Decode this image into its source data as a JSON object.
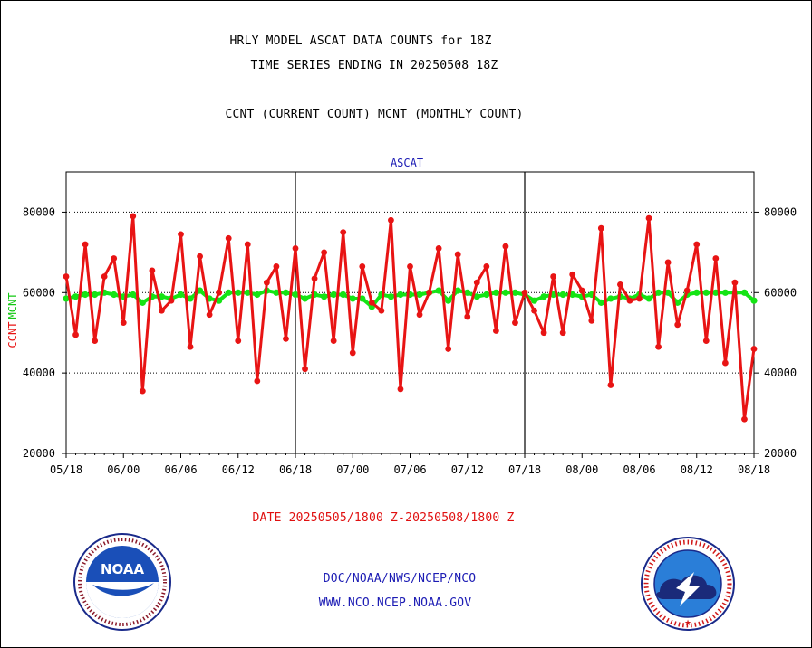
{
  "header": {
    "title_line1": "HRLY MODEL ASCAT DATA COUNTS for 18Z",
    "title_line2": "TIME SERIES ENDING IN 20250508 18Z",
    "subtitle": "CCNT (CURRENT COUNT) MCNT (MONTHLY COUNT)"
  },
  "footer": {
    "date_range": "DATE 20250505/1800 Z-20250508/1800 Z",
    "org": "DOC/NOAA/NWS/NCEP/NCO",
    "url": "WWW.NCO.NCEP.NOAA.GOV"
  },
  "logos": {
    "left": {
      "icon": "noaa-logo",
      "text": "NOAA"
    },
    "right": {
      "icon": "national-weather-service-logo"
    }
  },
  "chart_data": {
    "type": "line",
    "title": "ASCAT",
    "xlabel": "",
    "ylabel_left": "CCNT",
    "ylabel_left2": "MCNT",
    "ylim": [
      20000,
      90000
    ],
    "yticks": [
      20000,
      40000,
      60000,
      80000
    ],
    "ytick_labels": [
      "20000",
      "40000",
      "60000",
      "80000"
    ],
    "xlim": [
      0,
      72
    ],
    "xticks": [
      0,
      6,
      12,
      18,
      24,
      30,
      36,
      42,
      48,
      54,
      60,
      66,
      72
    ],
    "xtick_labels": [
      "05/18",
      "06/00",
      "06/06",
      "06/12",
      "06/18",
      "07/00",
      "07/06",
      "07/12",
      "07/18",
      "08/00",
      "08/06",
      "08/12",
      "08/18"
    ],
    "day_dividers": [
      24,
      48
    ],
    "grid": "horizontal",
    "colors": {
      "ccnt": "#e81414",
      "mcnt": "#14e414",
      "title": "#1c1cb4",
      "text": "#000000"
    },
    "series": [
      {
        "name": "CCNT",
        "values": [
          64000,
          49500,
          72000,
          48000,
          64000,
          68500,
          52500,
          79000,
          35500,
          65500,
          55500,
          58000,
          74500,
          46500,
          69000,
          54500,
          60000,
          73500,
          48000,
          72000,
          38000,
          62500,
          66500,
          48500,
          71000,
          41000,
          63500,
          70000,
          48000,
          75000,
          45000,
          66500,
          57500,
          55500,
          78000,
          36000,
          66500,
          54500,
          60000,
          71000,
          46000,
          69500,
          54000,
          62500,
          66500,
          50500,
          71500,
          52500,
          60000,
          55500,
          50000,
          64000,
          50000,
          64500,
          60500,
          53000,
          76000,
          37000,
          62000,
          58000,
          58500,
          78500,
          46500,
          67500,
          52000,
          60500,
          72000,
          48000,
          68500,
          42500,
          62500,
          28500,
          46000
        ]
      },
      {
        "name": "MCNT",
        "values": [
          58500,
          59000,
          59500,
          59500,
          60000,
          59500,
          59000,
          59500,
          57500,
          59000,
          59000,
          58500,
          59500,
          58500,
          60500,
          58500,
          58000,
          60000,
          60000,
          60000,
          59500,
          60500,
          60000,
          60000,
          59500,
          58500,
          59500,
          59000,
          59500,
          59500,
          58500,
          58500,
          56500,
          59500,
          59000,
          59500,
          59500,
          59500,
          60000,
          60500,
          58000,
          60500,
          60000,
          59000,
          59500,
          60000,
          60000,
          60000,
          59500,
          58000,
          59000,
          59500,
          59500,
          59500,
          59000,
          59500,
          57500,
          58500,
          59000,
          58500,
          59500,
          58500,
          60000,
          60000,
          57500,
          59500,
          60000,
          60000,
          60000,
          60000,
          60000,
          60000,
          58000
        ]
      }
    ]
  }
}
